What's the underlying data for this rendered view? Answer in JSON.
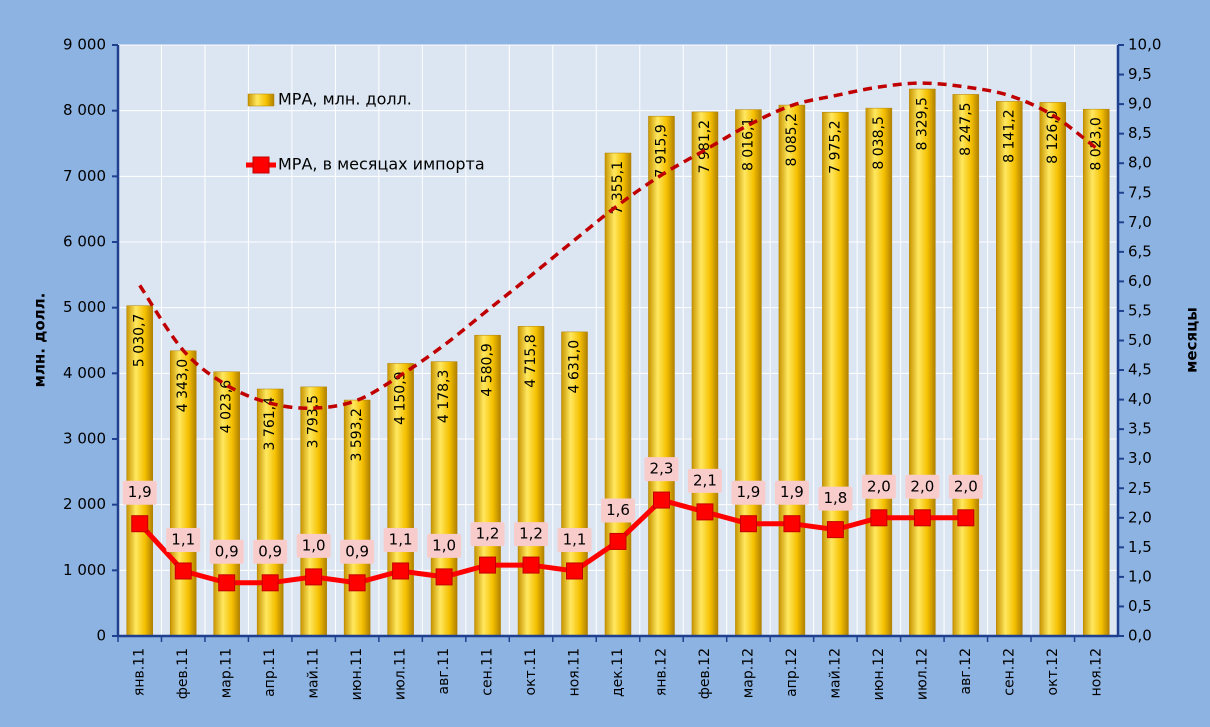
{
  "chart_data": {
    "type": "bar-line",
    "y_label": "млн. долл.",
    "y2_label": "месяцы",
    "categories": [
      "янв.11",
      "фев.11",
      "мар.11",
      "апр.11",
      "май.11",
      "июн.11",
      "июл.11",
      "авг.11",
      "сен.11",
      "окт.11",
      "ноя.11",
      "дек.11",
      "янв.12",
      "фев.12",
      "мар.12",
      "апр.12",
      "май.12",
      "июн.12",
      "июл.12",
      "авг.12",
      "сен.12",
      "окт.12",
      "ноя.12"
    ],
    "series": [
      {
        "name": "МРА, млн. долл.",
        "color": "#f5c000",
        "kind": "bar",
        "values": [
          5030.7,
          4343.0,
          4023.6,
          3761.4,
          3793.5,
          3593.2,
          4150.9,
          4178.3,
          4580.9,
          4715.8,
          4631.0,
          7355.1,
          7915.9,
          7981.2,
          8016.1,
          8085.2,
          7975.2,
          8038.5,
          8329.5,
          8247.5,
          8141.2,
          8126.0,
          8023.0
        ],
        "value_labels": [
          "5 030,7",
          "4 343,0",
          "4 023,6",
          "3 761,4",
          "3 793,5",
          "3 593,2",
          "4 150,9",
          "4 178,3",
          "4 580,9",
          "4 715,8",
          "4 631,0",
          "7 355,1",
          "7 915,9",
          "7 981,2",
          "8 016,1",
          "8 085,2",
          "7 975,2",
          "8 038,5",
          "8 329,5",
          "8 247,5",
          "8 141,2",
          "8 126,0",
          "8 023,0"
        ]
      },
      {
        "name": "МРА, в месяцах импорта",
        "color": "#ff0000",
        "kind": "line",
        "axis": "y2",
        "values": [
          1.9,
          1.1,
          0.9,
          0.9,
          1.0,
          0.9,
          1.1,
          1.0,
          1.2,
          1.2,
          1.1,
          1.6,
          2.3,
          2.1,
          1.9,
          1.9,
          1.8,
          2.0,
          2.0,
          2.0,
          null,
          null,
          null
        ],
        "value_labels": [
          "1,9",
          "1,1",
          "0,9",
          "0,9",
          "1,0",
          "0,9",
          "1,1",
          "1,0",
          "1,2",
          "1,2",
          "1,1",
          "1,6",
          "2,3",
          "2,1",
          "1,9",
          "1,9",
          "1,8",
          "2,0",
          "2,0",
          "2,0",
          null,
          null,
          null
        ]
      }
    ],
    "trendline": {
      "color": "#c00000",
      "values": [
        5340,
        4350,
        3820,
        3545,
        3470,
        3590,
        3970,
        4430,
        4960,
        5490,
        6030,
        6560,
        7020,
        7400,
        7780,
        8080,
        8230,
        8360,
        8420,
        8360,
        8230,
        7930,
        7430
      ]
    },
    "ylim": [
      0,
      9000
    ],
    "yticks": [
      0,
      {
        "value": 1000,
        "label": "1 000"
      },
      {
        "value": 2000,
        "label": "2 000"
      },
      {
        "value": 3000,
        "label": "3 000"
      },
      {
        "value": 4000,
        "label": "4 000"
      },
      {
        "value": 5000,
        "label": "5 000"
      },
      {
        "value": 6000,
        "label": "6 000"
      },
      {
        "value": 7000,
        "label": "7 000"
      },
      {
        "value": 8000,
        "label": "8 000"
      },
      {
        "value": 9000,
        "label": "9 000"
      }
    ],
    "y2lim": [
      0,
      10
    ],
    "y2ticks": [
      {
        "value": 0,
        "label": "0,0"
      },
      {
        "value": 0.5,
        "label": "0,5"
      },
      {
        "value": 1,
        "label": "1,0"
      },
      {
        "value": 1.5,
        "label": "1,5"
      },
      {
        "value": 2,
        "label": "2,0"
      },
      {
        "value": 2.5,
        "label": "2,5"
      },
      {
        "value": 3,
        "label": "3,0"
      },
      {
        "value": 3.5,
        "label": "3,5"
      },
      {
        "value": 4,
        "label": "4,0"
      },
      {
        "value": 4.5,
        "label": "4,5"
      },
      {
        "value": 5,
        "label": "5,0"
      },
      {
        "value": 5.5,
        "label": "5,5"
      },
      {
        "value": 6,
        "label": "6,0"
      },
      {
        "value": 6.5,
        "label": "6,5"
      },
      {
        "value": 7,
        "label": "7,0"
      },
      {
        "value": 7.5,
        "label": "7,5"
      },
      {
        "value": 8,
        "label": "8,0"
      },
      {
        "value": 8.5,
        "label": "8,5"
      },
      {
        "value": 9,
        "label": "9,0"
      },
      {
        "value": 9.5,
        "label": "9,5"
      },
      {
        "value": 10,
        "label": "10,0"
      }
    ],
    "grid": true,
    "legend": "upper left"
  }
}
